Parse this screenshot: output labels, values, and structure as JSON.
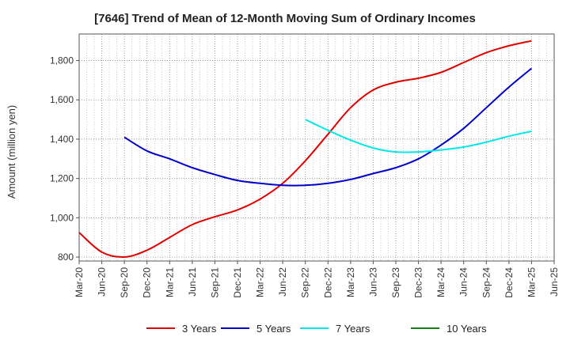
{
  "chart_data": {
    "type": "line",
    "title": "[7646]  Trend of Mean of 12-Month Moving Sum of Ordinary Incomes",
    "xlabel": "",
    "ylabel": "Amount (million yen)",
    "categories": [
      "Mar-20",
      "Jun-20",
      "Sep-20",
      "Dec-20",
      "Mar-21",
      "Jun-21",
      "Sep-21",
      "Dec-21",
      "Mar-22",
      "Jun-22",
      "Sep-22",
      "Dec-22",
      "Mar-23",
      "Jun-23",
      "Sep-23",
      "Dec-23",
      "Mar-24",
      "Jun-24",
      "Sep-24",
      "Dec-24",
      "Mar-25",
      "Jun-25"
    ],
    "y_ticks": [
      800,
      1000,
      1200,
      1400,
      1600,
      1800
    ],
    "y_tick_labels": [
      "800",
      "1,000",
      "1,200",
      "1,400",
      "1,600",
      "1,800"
    ],
    "ylim": [
      780,
      1935
    ],
    "grid": true,
    "legend_position": "bottom",
    "series": [
      {
        "name": "3 Years",
        "color": "#e00000",
        "values": [
          925,
          825,
          800,
          835,
          900,
          965,
          1005,
          1040,
          1095,
          1175,
          1290,
          1425,
          1560,
          1650,
          1690,
          1710,
          1740,
          1790,
          1840,
          1875,
          1900,
          null
        ]
      },
      {
        "name": "5 Years",
        "color": "#0000c8",
        "values": [
          null,
          null,
          1410,
          1340,
          1300,
          1255,
          1220,
          1190,
          1175,
          1165,
          1165,
          1175,
          1195,
          1225,
          1255,
          1300,
          1370,
          1455,
          1560,
          1665,
          1760,
          null
        ]
      },
      {
        "name": "7 Years",
        "color": "#00e8e8",
        "values": [
          null,
          null,
          null,
          null,
          null,
          null,
          null,
          null,
          null,
          null,
          1500,
          1445,
          1395,
          1355,
          1335,
          1335,
          1345,
          1360,
          1385,
          1415,
          1440,
          null
        ]
      },
      {
        "name": "10 Years",
        "color": "#108010",
        "values": [
          null,
          null,
          null,
          null,
          null,
          null,
          null,
          null,
          null,
          null,
          null,
          null,
          null,
          null,
          null,
          null,
          null,
          null,
          null,
          null,
          null,
          null
        ]
      }
    ]
  }
}
